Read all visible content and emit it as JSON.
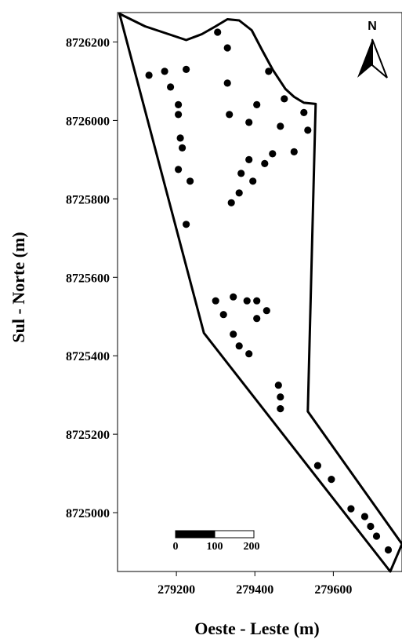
{
  "chart_data": {
    "type": "scatter",
    "xlabel": "Oeste - Leste (m)",
    "ylabel": "Sul - Norte (m)",
    "xlim": [
      279050,
      279775
    ],
    "ylim": [
      8724850,
      8726275
    ],
    "x_ticks": [
      279200,
      279400,
      279600
    ],
    "y_ticks": [
      8725000,
      8725200,
      8725400,
      8725600,
      8725800,
      8726000,
      8726200
    ],
    "north_arrow": "N",
    "scale_bar": {
      "labels": [
        "0",
        "100",
        "200"
      ]
    },
    "boundary": [
      [
        279055,
        8726272
      ],
      [
        279120,
        8726240
      ],
      [
        279180,
        8726220
      ],
      [
        279225,
        8726205
      ],
      [
        279265,
        8726220
      ],
      [
        279300,
        8726240
      ],
      [
        279330,
        8726258
      ],
      [
        279360,
        8726255
      ],
      [
        279392,
        8726230
      ],
      [
        279418,
        8726180
      ],
      [
        279445,
        8726130
      ],
      [
        279478,
        8726080
      ],
      [
        279500,
        8726060
      ],
      [
        279525,
        8726045
      ],
      [
        279555,
        8726042
      ],
      [
        279535,
        8725258
      ],
      [
        279775,
        8724920
      ],
      [
        279745,
        8724850
      ],
      [
        279270,
        8725458
      ]
    ],
    "points": [
      {
        "x": 279305,
        "y": 8726225
      },
      {
        "x": 279330,
        "y": 8726185
      },
      {
        "x": 279130,
        "y": 8726115
      },
      {
        "x": 279170,
        "y": 8726125
      },
      {
        "x": 279225,
        "y": 8726130
      },
      {
        "x": 279330,
        "y": 8726095
      },
      {
        "x": 279435,
        "y": 8726125
      },
      {
        "x": 279185,
        "y": 8726085
      },
      {
        "x": 279205,
        "y": 8726040
      },
      {
        "x": 279405,
        "y": 8726040
      },
      {
        "x": 279475,
        "y": 8726055
      },
      {
        "x": 279205,
        "y": 8726015
      },
      {
        "x": 279335,
        "y": 8726015
      },
      {
        "x": 279385,
        "y": 8725995
      },
      {
        "x": 279465,
        "y": 8725985
      },
      {
        "x": 279525,
        "y": 8726020
      },
      {
        "x": 279535,
        "y": 8725975
      },
      {
        "x": 279210,
        "y": 8725955
      },
      {
        "x": 279215,
        "y": 8725930
      },
      {
        "x": 279385,
        "y": 8725900
      },
      {
        "x": 279425,
        "y": 8725890
      },
      {
        "x": 279445,
        "y": 8725915
      },
      {
        "x": 279500,
        "y": 8725920
      },
      {
        "x": 279205,
        "y": 8725875
      },
      {
        "x": 279365,
        "y": 8725865
      },
      {
        "x": 279235,
        "y": 8725845
      },
      {
        "x": 279395,
        "y": 8725845
      },
      {
        "x": 279360,
        "y": 8725815
      },
      {
        "x": 279340,
        "y": 8725790
      },
      {
        "x": 279225,
        "y": 8725735
      },
      {
        "x": 279300,
        "y": 8725540
      },
      {
        "x": 279345,
        "y": 8725550
      },
      {
        "x": 279380,
        "y": 8725540
      },
      {
        "x": 279405,
        "y": 8725540
      },
      {
        "x": 279320,
        "y": 8725505
      },
      {
        "x": 279430,
        "y": 8725515
      },
      {
        "x": 279405,
        "y": 8725495
      },
      {
        "x": 279345,
        "y": 8725455
      },
      {
        "x": 279360,
        "y": 8725425
      },
      {
        "x": 279385,
        "y": 8725405
      },
      {
        "x": 279460,
        "y": 8725325
      },
      {
        "x": 279465,
        "y": 8725295
      },
      {
        "x": 279465,
        "y": 8725265
      },
      {
        "x": 279560,
        "y": 8725120
      },
      {
        "x": 279595,
        "y": 8725085
      },
      {
        "x": 279645,
        "y": 8725010
      },
      {
        "x": 279680,
        "y": 8724990
      },
      {
        "x": 279695,
        "y": 8724965
      },
      {
        "x": 279710,
        "y": 8724940
      },
      {
        "x": 279740,
        "y": 8724905
      }
    ]
  }
}
